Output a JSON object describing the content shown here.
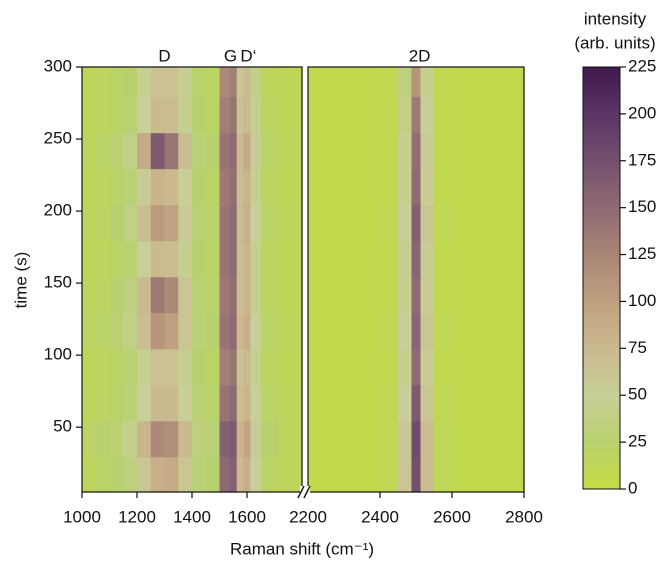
{
  "chart_data": {
    "type": "heatmap",
    "xlabel": "Raman shift (cm⁻¹)",
    "ylabel": "time (s)",
    "colorbar_title": [
      "intensity",
      "(arb. units)"
    ],
    "x_segments": [
      {
        "xlim": [
          1000,
          1800
        ],
        "xticks": [
          1000,
          1200,
          1400,
          1600
        ]
      },
      {
        "xlim": [
          2200,
          2800
        ],
        "xticks": [
          2200,
          2400,
          2600,
          2800
        ]
      }
    ],
    "ylim": [
      5,
      300
    ],
    "yticks": [
      50,
      100,
      150,
      200,
      250,
      300
    ],
    "zlim": [
      0,
      225
    ],
    "zticks": [
      0,
      25,
      50,
      75,
      100,
      125,
      150,
      175,
      200,
      225
    ],
    "colormap": [
      "#c4db42",
      "#b8d16e",
      "#c8cf98",
      "#cbb98f",
      "#bfa07f",
      "#a88575",
      "#8e6a74",
      "#74506e",
      "#5a3565",
      "#40184d"
    ],
    "annotations": [
      {
        "text": "D",
        "x": 1300
      },
      {
        "text": "G",
        "x": 1540
      },
      {
        "text": "D‘",
        "x": 1605
      },
      {
        "text": "2D",
        "x": 2510
      }
    ],
    "x": [
      1025,
      1075,
      1125,
      1175,
      1225,
      1275,
      1325,
      1375,
      1425,
      1475,
      1525,
      1550,
      1575,
      1600,
      1625,
      1675,
      1750,
      2250,
      2350,
      2425,
      2475,
      2500,
      2525,
      2575,
      2650,
      2750
    ],
    "y": [
      17,
      42,
      67,
      92,
      117,
      142,
      167,
      192,
      217,
      242,
      267,
      292
    ],
    "z": [
      [
        15,
        20,
        25,
        35,
        60,
        85,
        90,
        60,
        30,
        25,
        150,
        160,
        75,
        85,
        50,
        20,
        15,
        5,
        5,
        10,
        60,
        175,
        70,
        10,
        5,
        5
      ],
      [
        20,
        25,
        30,
        45,
        80,
        120,
        115,
        75,
        35,
        30,
        160,
        165,
        80,
        95,
        55,
        25,
        15,
        5,
        5,
        10,
        60,
        180,
        70,
        10,
        5,
        5
      ],
      [
        15,
        18,
        22,
        30,
        50,
        75,
        75,
        50,
        28,
        22,
        140,
        150,
        70,
        80,
        50,
        20,
        15,
        5,
        5,
        10,
        50,
        165,
        60,
        10,
        5,
        5
      ],
      [
        12,
        15,
        20,
        28,
        45,
        65,
        65,
        45,
        25,
        20,
        130,
        140,
        65,
        75,
        45,
        18,
        12,
        5,
        5,
        8,
        45,
        150,
        55,
        8,
        5,
        5
      ],
      [
        18,
        20,
        28,
        40,
        70,
        110,
        100,
        60,
        30,
        25,
        140,
        150,
        75,
        85,
        50,
        20,
        15,
        5,
        5,
        10,
        50,
        155,
        60,
        10,
        5,
        5
      ],
      [
        15,
        18,
        25,
        35,
        75,
        135,
        120,
        60,
        28,
        22,
        135,
        145,
        70,
        80,
        45,
        18,
        12,
        5,
        5,
        8,
        45,
        150,
        55,
        8,
        5,
        5
      ],
      [
        12,
        15,
        20,
        28,
        50,
        75,
        70,
        45,
        25,
        20,
        140,
        150,
        70,
        80,
        45,
        18,
        12,
        5,
        5,
        8,
        45,
        155,
        55,
        8,
        5,
        5
      ],
      [
        15,
        18,
        25,
        38,
        70,
        105,
        95,
        55,
        28,
        22,
        140,
        150,
        70,
        85,
        50,
        20,
        15,
        5,
        5,
        10,
        50,
        160,
        60,
        10,
        5,
        5
      ],
      [
        12,
        15,
        22,
        30,
        55,
        80,
        75,
        50,
        25,
        20,
        135,
        145,
        70,
        80,
        45,
        18,
        12,
        5,
        5,
        8,
        45,
        150,
        55,
        8,
        5,
        5
      ],
      [
        15,
        20,
        28,
        40,
        90,
        165,
        140,
        70,
        30,
        25,
        140,
        150,
        75,
        90,
        55,
        20,
        15,
        5,
        5,
        8,
        45,
        145,
        55,
        8,
        5,
        5
      ],
      [
        12,
        15,
        20,
        28,
        50,
        75,
        70,
        45,
        25,
        20,
        130,
        140,
        65,
        75,
        45,
        18,
        12,
        5,
        5,
        8,
        40,
        135,
        50,
        8,
        5,
        5
      ],
      [
        12,
        15,
        20,
        25,
        45,
        65,
        65,
        45,
        22,
        18,
        120,
        130,
        60,
        70,
        40,
        15,
        12,
        5,
        5,
        8,
        35,
        110,
        45,
        8,
        5,
        5
      ]
    ]
  }
}
